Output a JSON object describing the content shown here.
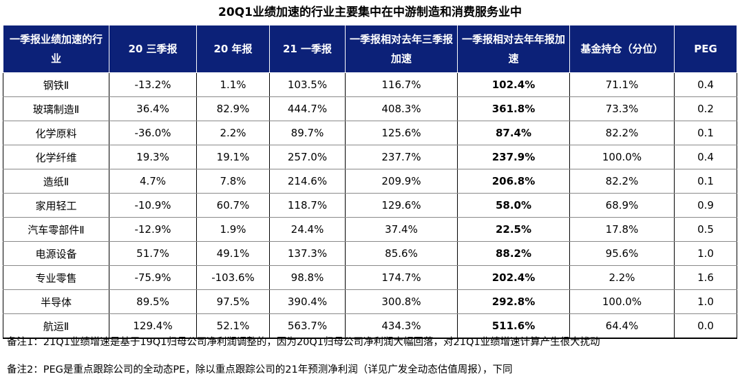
{
  "title": "20Q1业绩加速的行业主要集中在中游制造和消费服务业中",
  "headers": [
    "一季报业绩加速的行业",
    "20 三季报",
    "20 年报",
    "21 一季报",
    "一季报相对去年三季报加速",
    "一季报相对去年年报加速",
    "基金持仓（分位）",
    "PEG"
  ],
  "rows": [
    [
      "钢铁Ⅱ",
      "-13.2%",
      "1.1%",
      "103.5%",
      "116.7%",
      "102.4%",
      "71.1%",
      "0.4"
    ],
    [
      "玻璃制造Ⅱ",
      "36.4%",
      "82.9%",
      "444.7%",
      "408.3%",
      "361.8%",
      "73.3%",
      "0.2"
    ],
    [
      "化学原料",
      "-36.0%",
      "2.2%",
      "89.7%",
      "125.6%",
      "87.4%",
      "82.2%",
      "0.1"
    ],
    [
      "化学纤维",
      "19.3%",
      "19.1%",
      "257.0%",
      "237.7%",
      "237.9%",
      "100.0%",
      "0.4"
    ],
    [
      "造纸Ⅱ",
      "4.7%",
      "7.8%",
      "214.6%",
      "209.9%",
      "206.8%",
      "82.2%",
      "0.1"
    ],
    [
      "家用轻工",
      "-10.9%",
      "60.7%",
      "118.7%",
      "129.6%",
      "58.0%",
      "68.9%",
      "0.9"
    ],
    [
      "汽车零部件Ⅱ",
      "-12.9%",
      "1.9%",
      "24.4%",
      "37.4%",
      "22.5%",
      "17.8%",
      "0.5"
    ],
    [
      "电源设备",
      "51.7%",
      "49.1%",
      "137.3%",
      "85.6%",
      "88.2%",
      "95.6%",
      "1.0"
    ],
    [
      "专业零售",
      "-75.9%",
      "-103.6%",
      "98.8%",
      "174.7%",
      "202.4%",
      "2.2%",
      "1.6"
    ],
    [
      "半导体",
      "89.5%",
      "97.5%",
      "390.4%",
      "300.8%",
      "292.8%",
      "100.0%",
      "1.0"
    ],
    [
      "航运Ⅱ",
      "129.4%",
      "52.1%",
      "563.7%",
      "434.3%",
      "511.6%",
      "64.4%",
      "0.0"
    ]
  ],
  "notes": [
    "备注1：21Q1业绩增速是基于19Q1归母公司净利润调整的，因为20Q1归母公司净利润大幅回落，对21Q1业绩增速计算产生很大扰动",
    "备注2：PEG是重点跟踪公司的全动态PE，除以重点跟踪公司的21年预测净利润（详见广发全动态估值周报），下同"
  ],
  "colors": {
    "header_bg": "#0c2178",
    "header_text": "#ffffff"
  }
}
